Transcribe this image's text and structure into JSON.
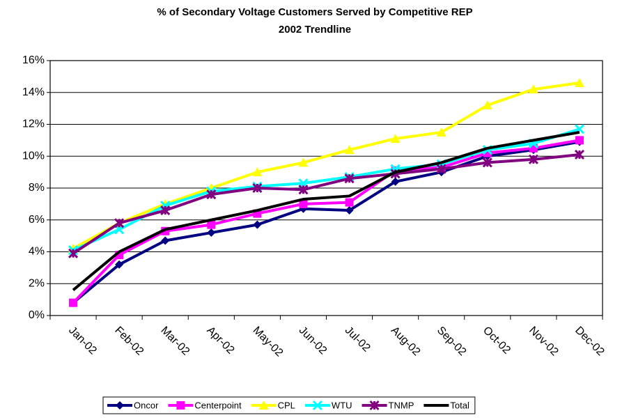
{
  "chart_data": {
    "type": "line",
    "title": "% of Secondary Voltage Customers Served by Competitive REP",
    "subtitle": "2002 Trendline",
    "categories": [
      "Jan-02",
      "Feb-02",
      "Mar-02",
      "Apr-02",
      "May-02",
      "Jun-02",
      "Jul-02",
      "Aug-02",
      "Sep-02",
      "Oct-02",
      "Nov-02",
      "Dec-02"
    ],
    "series": [
      {
        "name": "Oncor",
        "color": "#000080",
        "marker": "diamond",
        "values": [
          0.8,
          3.2,
          4.7,
          5.2,
          5.7,
          6.7,
          6.6,
          8.4,
          9.0,
          10.0,
          10.4,
          10.9
        ]
      },
      {
        "name": "Centerpoint",
        "color": "#ff00ff",
        "marker": "square",
        "values": [
          0.8,
          3.8,
          5.3,
          5.7,
          6.4,
          7.0,
          7.1,
          9.1,
          9.3,
          10.2,
          10.5,
          11.0
        ]
      },
      {
        "name": "CPL",
        "color": "#ffff00",
        "marker": "triangle",
        "values": [
          4.2,
          5.8,
          7.0,
          8.0,
          9.0,
          9.6,
          10.4,
          11.1,
          11.5,
          13.2,
          14.2,
          14.6
        ]
      },
      {
        "name": "WTU",
        "color": "#00ffff",
        "marker": "x",
        "values": [
          4.1,
          5.4,
          6.9,
          7.8,
          8.1,
          8.3,
          8.7,
          9.2,
          9.5,
          10.4,
          10.8,
          11.7
        ]
      },
      {
        "name": "TNMP",
        "color": "#800080",
        "marker": "star",
        "values": [
          3.9,
          5.8,
          6.6,
          7.6,
          8.0,
          7.9,
          8.6,
          8.9,
          9.2,
          9.6,
          9.8,
          10.1
        ]
      },
      {
        "name": "Total",
        "color": "#000000",
        "marker": "none",
        "values": [
          1.6,
          4.0,
          5.4,
          6.0,
          6.6,
          7.3,
          7.5,
          9.0,
          9.6,
          10.5,
          11.0,
          11.5
        ]
      }
    ],
    "ylim": [
      0,
      16
    ],
    "yticks": [
      {
        "value": 0,
        "label": "0%"
      },
      {
        "value": 2,
        "label": "2%"
      },
      {
        "value": 4,
        "label": "4%"
      },
      {
        "value": 6,
        "label": "6%"
      },
      {
        "value": 8,
        "label": "8%"
      },
      {
        "value": 10,
        "label": "10%"
      },
      {
        "value": 12,
        "label": "12%"
      },
      {
        "value": 14,
        "label": "14%"
      },
      {
        "value": 16,
        "label": "16%"
      }
    ],
    "grid": true,
    "legend": "bottom"
  }
}
